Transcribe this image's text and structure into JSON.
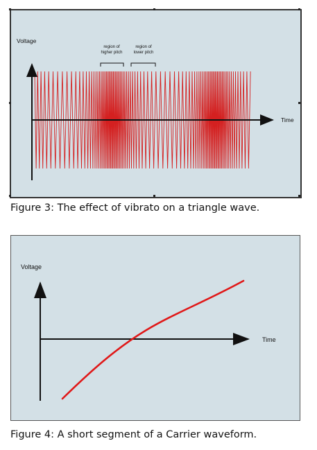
{
  "figure3": {
    "ylabel": "Voltage",
    "xlabel": "Time",
    "annotation_high_1": "region of",
    "annotation_high_2": "higher pitch",
    "annotation_low_1": "region of",
    "annotation_low_2": "lower pitch",
    "caption": "Figure 3: The effect of vibrato on a triangle wave.",
    "wave_color": "#d42020"
  },
  "figure4": {
    "ylabel": "Voltage",
    "xlabel": "Time",
    "caption": "Figure 4: A short segment of a Carrier waveform.",
    "curve_color": "#e01818"
  },
  "colors": {
    "panel_bg": "#d3e0e6",
    "axis": "#111111"
  }
}
